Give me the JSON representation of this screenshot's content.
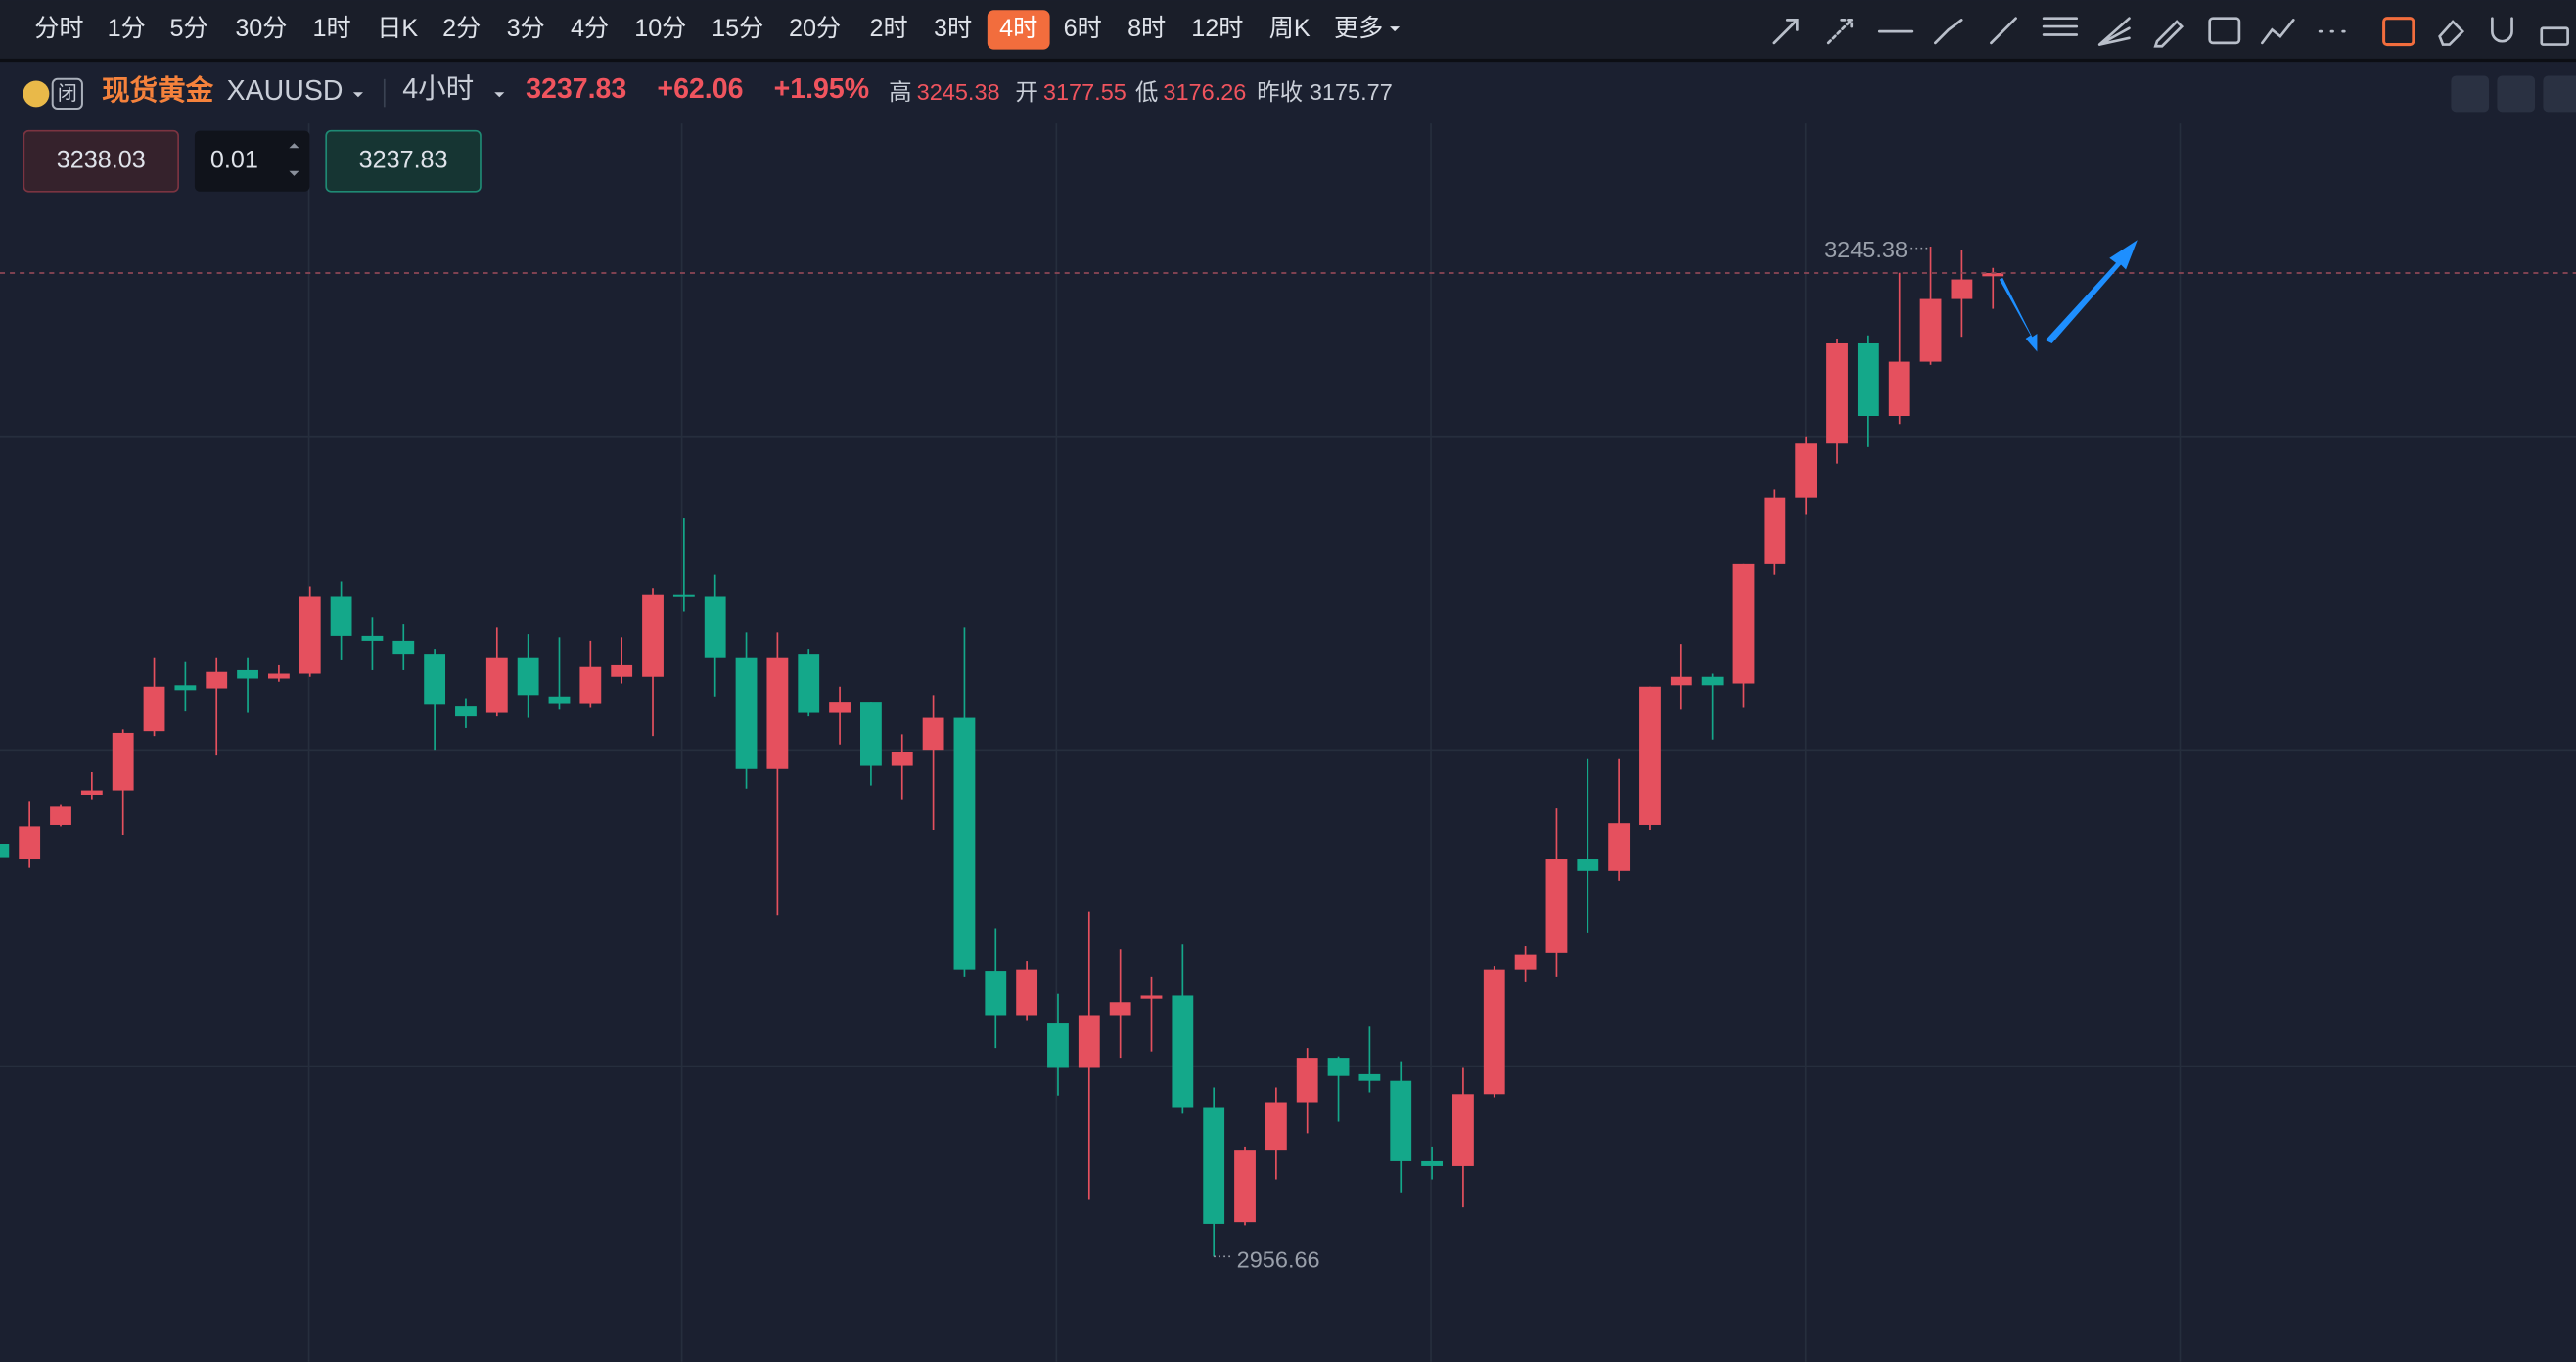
{
  "toolbar": {
    "timeframes": [
      "分时",
      "1分",
      "5分",
      "30分",
      "1时",
      "日K",
      "2分",
      "3分",
      "4分",
      "10分",
      "15分",
      "20分",
      "2时",
      "3时",
      "4时",
      "6时",
      "8时",
      "12时",
      "周K"
    ],
    "active_index": 14,
    "more": "更多"
  },
  "header": {
    "badge": "闭",
    "name": "现货黄金",
    "symbol": "XAUUSD",
    "period": "4小时",
    "price": "3237.83",
    "change": "+62.06",
    "change_pct": "+1.95%",
    "stats": [
      {
        "label": "高",
        "value": "3245.38"
      },
      {
        "label": "开",
        "value": "3177.55"
      },
      {
        "label": "低",
        "value": "3176.26"
      },
      {
        "label": "昨收",
        "value": "3175.77"
      }
    ]
  },
  "order": {
    "sell": "3238.03",
    "quantity": "0.01",
    "buy": "3237.83"
  },
  "chart_data": {
    "type": "candlestick",
    "up_color": "#e5505e",
    "down_color": "#14a88a",
    "grid": true,
    "open": [
      3074.5,
      3070.3,
      3080.1,
      3088.6,
      3090.0,
      3106.9,
      3120.0,
      3119.1,
      3124.3,
      3121.9,
      3123.3,
      3145.4,
      3134.1,
      3132.7,
      3129.0,
      3113.9,
      3112.1,
      3128.0,
      3116.8,
      3114.9,
      3122.4,
      3122.4,
      3145.9,
      3145.4,
      3128.0,
      3096.1,
      3129.0,
      3112.1,
      3115.3,
      3097.0,
      3101.3,
      3110.7,
      3038.4,
      3025.7,
      3023.3,
      3010.6,
      3025.7,
      3030.4,
      3031.3,
      2999.4,
      2966.5,
      2987.2,
      3000.8,
      3013.5,
      3008.8,
      3006.9,
      2983.9,
      2982.5,
      3003.1,
      3038.8,
      3043.5,
      3070.3,
      3067.0,
      3080.1,
      3120.0,
      3122.4,
      3120.5,
      3154.8,
      3173.6,
      3189.1,
      3217.7,
      3197.0,
      3212.5,
      3230.4,
      3236.9
    ],
    "high": [
      3075.4,
      3086.7,
      3085.8,
      3095.2,
      3107.4,
      3128.0,
      3126.6,
      3128.0,
      3128.0,
      3125.7,
      3148.2,
      3149.6,
      3139.3,
      3137.4,
      3130.4,
      3116.3,
      3136.5,
      3134.6,
      3133.7,
      3132.7,
      3133.7,
      3147.7,
      3167.9,
      3151.5,
      3135.1,
      3135.1,
      3130.4,
      3119.6,
      3115.3,
      3106.0,
      3117.2,
      3136.5,
      3050.6,
      3041.2,
      3031.8,
      3055.3,
      3044.5,
      3036.5,
      3045.9,
      3005.0,
      2988.1,
      3005.0,
      3016.3,
      3013.9,
      3022.4,
      3012.5,
      2988.1,
      3010.6,
      3039.8,
      3045.4,
      3084.8,
      3098.9,
      3098.9,
      3119.6,
      3131.8,
      3123.3,
      3154.8,
      3175.9,
      3190.9,
      3219.1,
      3220.0,
      3237.9,
      3245.38,
      3244.4,
      3239.3
    ],
    "low": [
      3068.9,
      3067.9,
      3079.7,
      3087.2,
      3077.3,
      3105.5,
      3112.5,
      3099.9,
      3112.1,
      3121.0,
      3122.4,
      3127.1,
      3124.3,
      3124.3,
      3101.3,
      3107.8,
      3111.1,
      3110.7,
      3113.0,
      3113.5,
      3120.5,
      3105.5,
      3141.2,
      3116.8,
      3090.5,
      3054.3,
      3111.1,
      3103.1,
      3091.4,
      3087.2,
      3078.7,
      3036.5,
      3016.3,
      3024.3,
      3002.7,
      2973.1,
      3013.5,
      3015.3,
      2997.5,
      2956.66,
      2965.6,
      2978.7,
      2991.9,
      2995.2,
      3003.6,
      2975.0,
      2978.7,
      2970.7,
      3002.2,
      3035.1,
      3036.5,
      3049.1,
      3064.2,
      3078.7,
      3113.0,
      3104.5,
      3113.5,
      3151.5,
      3168.9,
      3183.4,
      3188.1,
      3194.7,
      3211.6,
      3219.6,
      3227.6
    ],
    "close": [
      3070.7,
      3079.7,
      3085.3,
      3090.0,
      3106.4,
      3119.6,
      3118.6,
      3123.8,
      3121.9,
      3123.3,
      3145.4,
      3134.1,
      3132.7,
      3129.0,
      3114.4,
      3111.1,
      3128.0,
      3117.2,
      3114.9,
      3125.2,
      3125.7,
      3145.9,
      3145.4,
      3128.0,
      3096.1,
      3128.0,
      3112.1,
      3115.3,
      3097.0,
      3100.8,
      3110.7,
      3038.8,
      3025.7,
      3038.8,
      3010.6,
      3025.7,
      3029.4,
      3031.3,
      2999.4,
      2966.0,
      2987.2,
      3000.8,
      3013.5,
      3008.3,
      3006.9,
      2983.9,
      2982.5,
      3003.1,
      3038.8,
      3043.0,
      3070.3,
      3067.0,
      3080.6,
      3119.6,
      3122.4,
      3120.0,
      3154.8,
      3173.6,
      3189.1,
      3217.7,
      3197.0,
      3212.5,
      3230.4,
      3236.0,
      3237.83
    ]
  }
}
